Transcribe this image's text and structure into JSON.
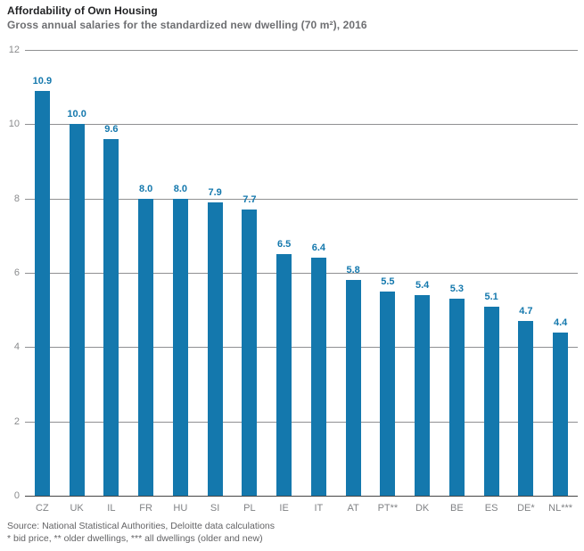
{
  "header": {
    "title": "Affordability of Own Housing",
    "subtitle": "Gross annual salaries for the standardized new dwelling (70 m²), 2016"
  },
  "chart_data": {
    "type": "bar",
    "title": "Affordability of Own Housing",
    "subtitle": "Gross annual salaries for the standardized new dwelling (70 m²), 2016",
    "categories": [
      "CZ",
      "UK",
      "IL",
      "FR",
      "HU",
      "SI",
      "PL",
      "IE",
      "IT",
      "AT",
      "PT**",
      "DK",
      "BE",
      "ES",
      "DE*",
      "NL***"
    ],
    "values": [
      10.9,
      10.0,
      9.6,
      8.0,
      8.0,
      7.9,
      7.7,
      6.5,
      6.4,
      5.8,
      5.5,
      5.4,
      5.3,
      5.1,
      4.7,
      4.4
    ],
    "value_labels": [
      "10.9",
      "10.0",
      "9.6",
      "8.0",
      "8.0",
      "7.9",
      "7.7",
      "6.5",
      "6.4",
      "5.8",
      "5.5",
      "5.4",
      "5.3",
      "5.1",
      "4.7",
      "4.4"
    ],
    "xlabel": "",
    "ylabel": "",
    "ylim": [
      0,
      12
    ],
    "yticks": [
      0,
      2,
      4,
      6,
      8,
      10,
      12
    ],
    "grid": true,
    "legend": "none",
    "bar_color": "#1478ad",
    "value_label_color": "#1478ad"
  },
  "footer": {
    "source": "Source: National Statistical Authorities, Deloitte data calculations",
    "footnote": "* bid price, ** older dwellings, *** all dwellings (older and new)"
  }
}
